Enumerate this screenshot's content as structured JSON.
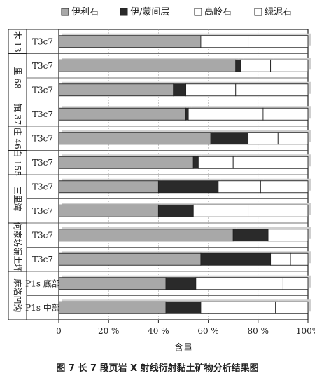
{
  "caption": "图 7 长 7 段页岩 X 射线衍射黏土矿物分析结果图",
  "chart_data": {
    "type": "bar",
    "orientation": "horizontal",
    "stacked": true,
    "percent": true,
    "xlabel": "含量",
    "xlim": [
      0,
      100
    ],
    "x_ticks": [
      "0",
      "20 %",
      "40 %",
      "60 %",
      "80 %",
      "100%"
    ],
    "legend_position": "top",
    "groups": [
      {
        "name": "木 13",
        "rows": [
          0
        ]
      },
      {
        "name": "里 68",
        "rows": [
          1,
          2
        ]
      },
      {
        "name": "镇 37",
        "rows": [
          3
        ]
      },
      {
        "name": "庄 46",
        "rows": [
          4
        ]
      },
      {
        "name": "白 155",
        "rows": [
          5
        ]
      },
      {
        "name": "三里湾",
        "rows": [
          6,
          7
        ]
      },
      {
        "name": "何家坊漏土坪",
        "rows": [
          8,
          9
        ]
      },
      {
        "name": "麻洛凹沟",
        "rows": [
          10,
          11
        ]
      }
    ],
    "categories": [
      "T3c7",
      "T3c7",
      "T3c7",
      "T3c7",
      "T3c7",
      "T3c7",
      "T3c7",
      "T3c7",
      "T3c7",
      "T3c7",
      "P1s 底部",
      "P1s 中部"
    ],
    "series": [
      {
        "name": "伊利石",
        "color": "#a8a8a8",
        "values": [
          57,
          71,
          46,
          51,
          61,
          54,
          40,
          40,
          70,
          57,
          43,
          43
        ]
      },
      {
        "name": "伊/蒙间层",
        "color": "#2a2a2a",
        "values": [
          0,
          2,
          5,
          1,
          15,
          2,
          24,
          14,
          14,
          28,
          12,
          14
        ]
      },
      {
        "name": "高岭石",
        "color": "#ffffff",
        "values": [
          19,
          12,
          20,
          30,
          12,
          14,
          17,
          22,
          8,
          8,
          35,
          30
        ]
      },
      {
        "name": "绿泥石",
        "color": "#ffffff",
        "values": [
          24,
          15,
          29,
          18,
          12,
          30,
          19,
          24,
          8,
          7,
          10,
          13
        ]
      }
    ]
  }
}
